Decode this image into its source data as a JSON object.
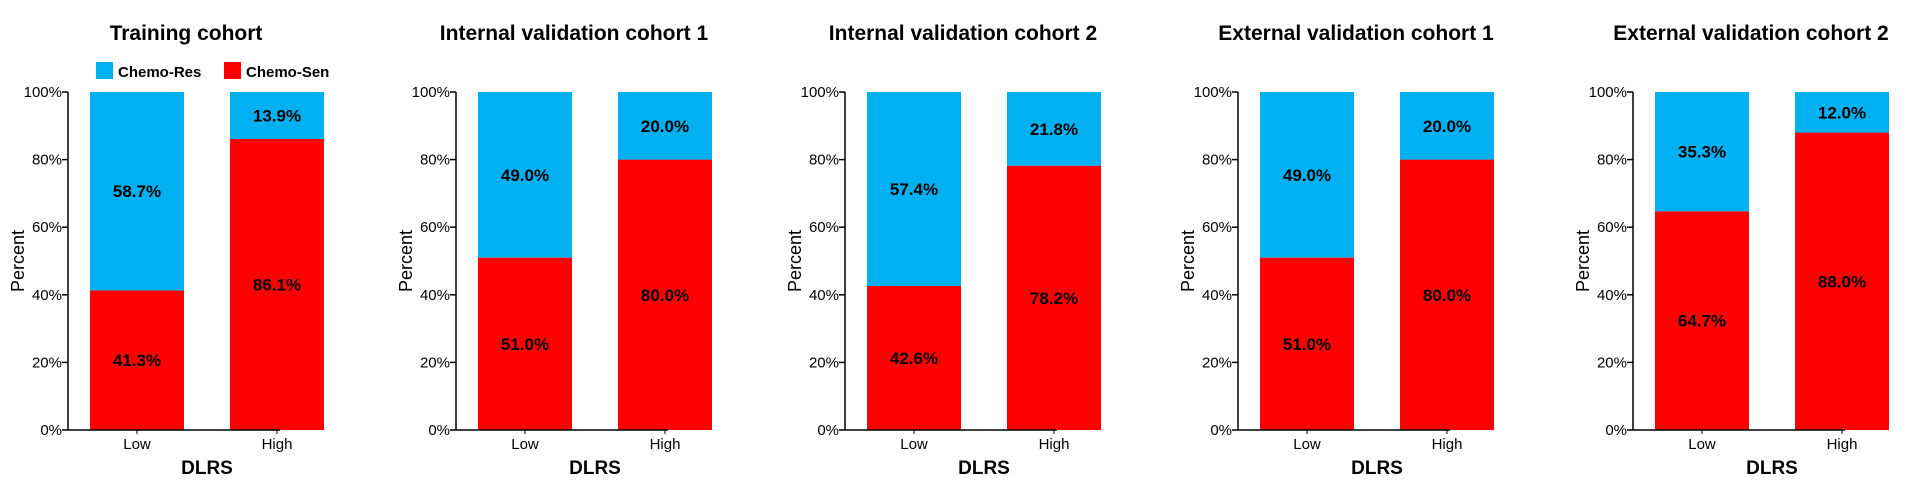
{
  "chart_data": [
    {
      "type": "bar",
      "stacked": true,
      "title": "Training cohort",
      "xlabel": "DLRS",
      "ylabel": "Percent",
      "categories": [
        "Low",
        "High"
      ],
      "ylim": [
        0,
        100
      ],
      "yticks": [
        "0%",
        "20%",
        "40%",
        "60%",
        "80%",
        "100%"
      ],
      "legend": "top-left",
      "series": [
        {
          "name": "Chemo-Sen",
          "color": "#ff0000",
          "values": [
            41.3,
            86.1
          ],
          "labels": [
            "41.3%",
            "86.1%"
          ]
        },
        {
          "name": "Chemo-Res",
          "color": "#00b0f0",
          "values": [
            58.7,
            13.9
          ],
          "labels": [
            "58.7%",
            "13.9%"
          ]
        }
      ]
    },
    {
      "type": "bar",
      "stacked": true,
      "title": "Internal validation cohort 1",
      "xlabel": "DLRS",
      "ylabel": "Percent",
      "categories": [
        "Low",
        "High"
      ],
      "ylim": [
        0,
        100
      ],
      "yticks": [
        "0%",
        "20%",
        "40%",
        "60%",
        "80%",
        "100%"
      ],
      "series": [
        {
          "color": "#ff0000",
          "values": [
            51.0,
            80.0
          ],
          "labels": [
            "51.0%",
            "80.0%"
          ]
        },
        {
          "color": "#00b0f0",
          "values": [
            49.0,
            20.0
          ],
          "labels": [
            "49.0%",
            "20.0%"
          ]
        }
      ]
    },
    {
      "type": "bar",
      "stacked": true,
      "title": "Internal validation cohort 2",
      "xlabel": "DLRS",
      "ylabel": "Percent",
      "categories": [
        "Low",
        "High"
      ],
      "ylim": [
        0,
        100
      ],
      "yticks": [
        "0%",
        "20%",
        "40%",
        "60%",
        "80%",
        "100%"
      ],
      "series": [
        {
          "color": "#ff0000",
          "values": [
            42.6,
            78.2
          ],
          "labels": [
            "42.6%",
            "78.2%"
          ]
        },
        {
          "color": "#00b0f0",
          "values": [
            57.4,
            21.8
          ],
          "labels": [
            "57.4%",
            "21.8%"
          ]
        }
      ]
    },
    {
      "type": "bar",
      "stacked": true,
      "title": "External validation cohort 1",
      "xlabel": "DLRS",
      "ylabel": "Percent",
      "categories": [
        "Low",
        "High"
      ],
      "ylim": [
        0,
        100
      ],
      "yticks": [
        "0%",
        "20%",
        "40%",
        "60%",
        "80%",
        "100%"
      ],
      "series": [
        {
          "color": "#ff0000",
          "values": [
            51.0,
            80.0
          ],
          "labels": [
            "51.0%",
            "80.0%"
          ]
        },
        {
          "color": "#00b0f0",
          "values": [
            49.0,
            20.0
          ],
          "labels": [
            "49.0%",
            "20.0%"
          ]
        }
      ]
    },
    {
      "type": "bar",
      "stacked": true,
      "title": "External validation cohort 2",
      "xlabel": "DLRS",
      "ylabel": "Percent",
      "categories": [
        "Low",
        "High"
      ],
      "ylim": [
        0,
        100
      ],
      "yticks": [
        "0%",
        "20%",
        "40%",
        "60%",
        "80%",
        "100%"
      ],
      "series": [
        {
          "color": "#ff0000",
          "values": [
            64.7,
            88.0
          ],
          "labels": [
            "64.7%",
            "88.0%"
          ]
        },
        {
          "color": "#00b0f0",
          "values": [
            35.3,
            12.0
          ],
          "labels": [
            "35.3%",
            "12.0%"
          ]
        }
      ]
    }
  ]
}
